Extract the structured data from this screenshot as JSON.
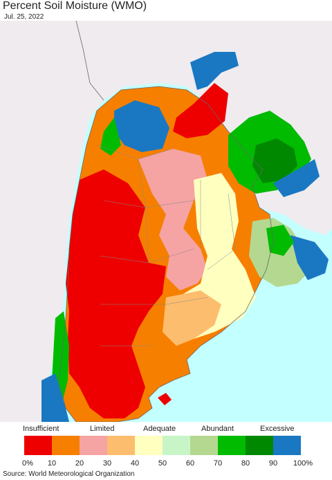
{
  "header": {
    "title": "Percent Soil Moisture (WMO)",
    "date": "Jul. 25, 2022"
  },
  "legend": {
    "categories": [
      "Insufficient",
      "Limited",
      "Adequate",
      "Abundant",
      "Excessive"
    ],
    "colors": [
      "#ee0000",
      "#f77f00",
      "#f5a3a3",
      "#fdbd6e",
      "#ffffc0",
      "#c8f5c8",
      "#b4d890",
      "#00bb00",
      "#008800",
      "#1a78c2"
    ],
    "ticks": [
      "0%",
      "10",
      "20",
      "30",
      "40",
      "50",
      "60",
      "70",
      "80",
      "90",
      "100%"
    ]
  },
  "map_colors": {
    "ocean": "#c4ffff",
    "neighbor_land": "#efebef",
    "border": "#666666"
  },
  "footer": {
    "source": "Source: World Meteorological Organization"
  }
}
